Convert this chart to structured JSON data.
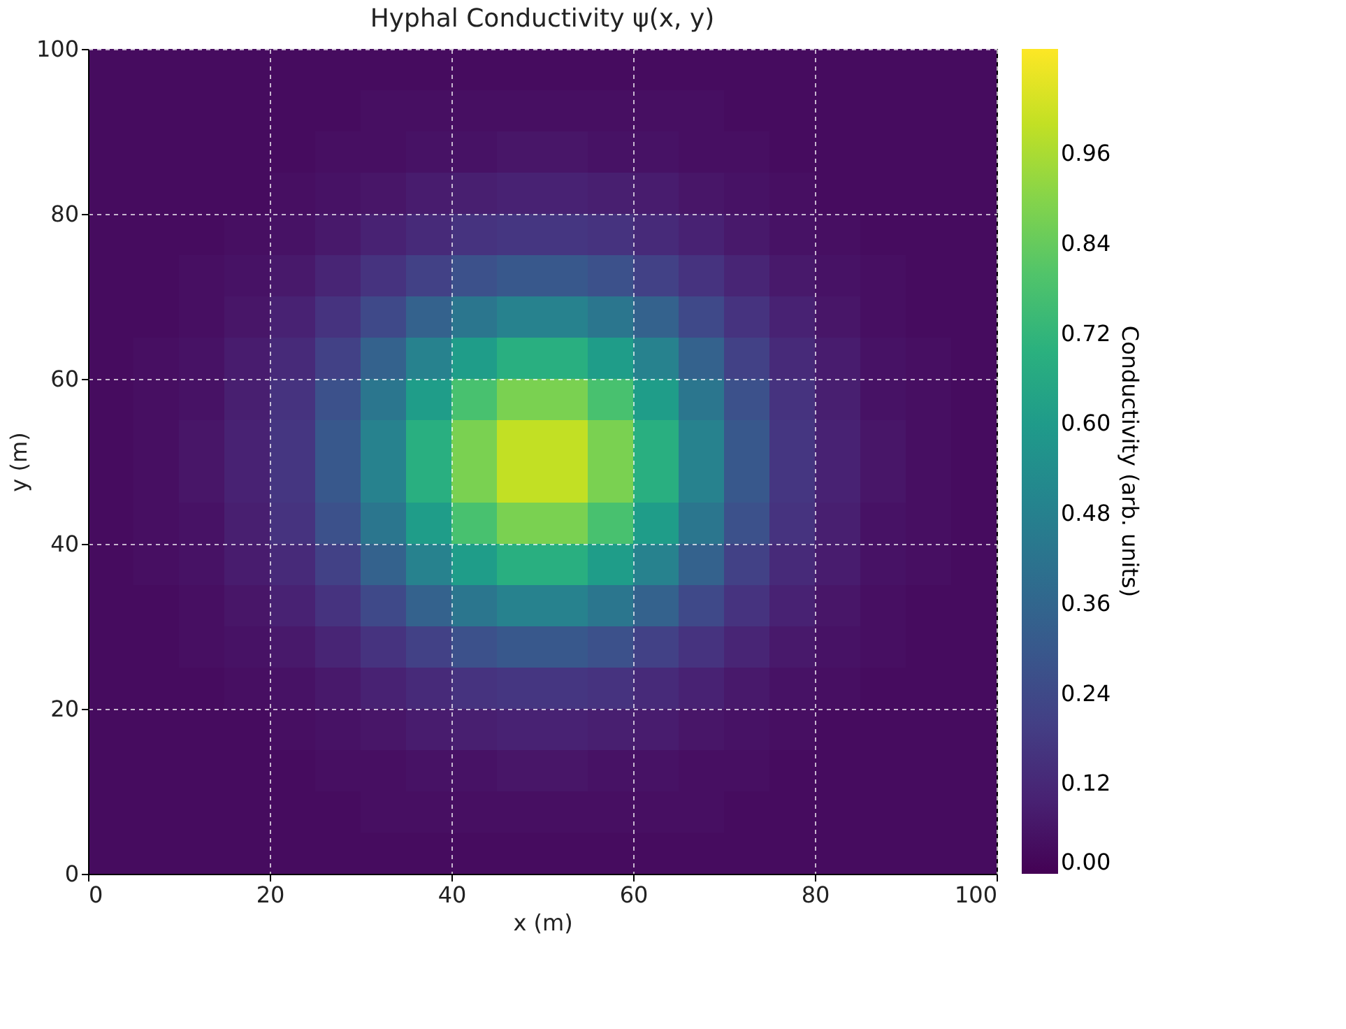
{
  "chart_data": {
    "type": "heatmap",
    "title": "Hyphal Conductivity ψ(x, y)",
    "xlabel": "x (m)",
    "ylabel": "y (m)",
    "clabel": "Conductivity (arb. units)",
    "cells": [
      [
        0.03,
        0.03,
        0.03,
        0.03,
        0.03,
        0.03,
        0.03,
        0.03,
        0.03,
        0.03,
        0.03,
        0.03,
        0.03,
        0.03,
        0.03,
        0.03,
        0.03,
        0.03,
        0.03,
        0.03
      ],
      [
        0.03,
        0.03,
        0.03,
        0.03,
        0.03,
        0.03,
        0.04,
        0.04,
        0.04,
        0.04,
        0.04,
        0.04,
        0.04,
        0.04,
        0.03,
        0.03,
        0.03,
        0.03,
        0.03,
        0.03
      ],
      [
        0.03,
        0.03,
        0.03,
        0.03,
        0.03,
        0.04,
        0.04,
        0.05,
        0.05,
        0.06,
        0.06,
        0.05,
        0.05,
        0.04,
        0.04,
        0.03,
        0.03,
        0.03,
        0.03,
        0.03
      ],
      [
        0.03,
        0.03,
        0.03,
        0.03,
        0.04,
        0.05,
        0.06,
        0.08,
        0.09,
        0.1,
        0.1,
        0.09,
        0.08,
        0.06,
        0.05,
        0.04,
        0.03,
        0.03,
        0.03,
        0.03
      ],
      [
        0.03,
        0.03,
        0.03,
        0.04,
        0.05,
        0.07,
        0.1,
        0.13,
        0.16,
        0.17,
        0.17,
        0.16,
        0.13,
        0.1,
        0.07,
        0.05,
        0.04,
        0.03,
        0.03,
        0.03
      ],
      [
        0.03,
        0.03,
        0.04,
        0.05,
        0.07,
        0.11,
        0.16,
        0.21,
        0.27,
        0.3,
        0.3,
        0.27,
        0.21,
        0.16,
        0.11,
        0.07,
        0.05,
        0.04,
        0.03,
        0.03
      ],
      [
        0.03,
        0.03,
        0.04,
        0.06,
        0.1,
        0.16,
        0.24,
        0.34,
        0.43,
        0.48,
        0.48,
        0.43,
        0.34,
        0.24,
        0.16,
        0.1,
        0.06,
        0.04,
        0.03,
        0.03
      ],
      [
        0.03,
        0.04,
        0.05,
        0.08,
        0.13,
        0.21,
        0.34,
        0.48,
        0.61,
        0.69,
        0.69,
        0.61,
        0.48,
        0.34,
        0.21,
        0.13,
        0.08,
        0.05,
        0.04,
        0.03
      ],
      [
        0.03,
        0.04,
        0.05,
        0.09,
        0.16,
        0.27,
        0.43,
        0.61,
        0.78,
        0.88,
        0.88,
        0.78,
        0.61,
        0.43,
        0.27,
        0.16,
        0.09,
        0.05,
        0.04,
        0.03
      ],
      [
        0.03,
        0.04,
        0.06,
        0.1,
        0.17,
        0.3,
        0.48,
        0.69,
        0.88,
        1.0,
        1.0,
        0.88,
        0.69,
        0.48,
        0.3,
        0.17,
        0.1,
        0.06,
        0.04,
        0.03
      ],
      [
        0.03,
        0.04,
        0.06,
        0.1,
        0.17,
        0.3,
        0.48,
        0.69,
        0.88,
        1.0,
        1.0,
        0.88,
        0.69,
        0.48,
        0.3,
        0.17,
        0.1,
        0.06,
        0.04,
        0.03
      ],
      [
        0.03,
        0.04,
        0.05,
        0.09,
        0.16,
        0.27,
        0.43,
        0.61,
        0.78,
        0.88,
        0.88,
        0.78,
        0.61,
        0.43,
        0.27,
        0.16,
        0.09,
        0.05,
        0.04,
        0.03
      ],
      [
        0.03,
        0.04,
        0.05,
        0.08,
        0.13,
        0.21,
        0.34,
        0.48,
        0.61,
        0.69,
        0.69,
        0.61,
        0.48,
        0.34,
        0.21,
        0.13,
        0.08,
        0.05,
        0.04,
        0.03
      ],
      [
        0.03,
        0.03,
        0.04,
        0.06,
        0.1,
        0.16,
        0.24,
        0.34,
        0.43,
        0.48,
        0.48,
        0.43,
        0.34,
        0.24,
        0.16,
        0.1,
        0.06,
        0.04,
        0.03,
        0.03
      ],
      [
        0.03,
        0.03,
        0.04,
        0.05,
        0.07,
        0.11,
        0.16,
        0.21,
        0.27,
        0.3,
        0.3,
        0.27,
        0.21,
        0.16,
        0.11,
        0.07,
        0.05,
        0.04,
        0.03,
        0.03
      ],
      [
        0.03,
        0.03,
        0.03,
        0.04,
        0.05,
        0.07,
        0.1,
        0.13,
        0.16,
        0.17,
        0.17,
        0.16,
        0.13,
        0.1,
        0.07,
        0.05,
        0.04,
        0.03,
        0.03,
        0.03
      ],
      [
        0.03,
        0.03,
        0.03,
        0.03,
        0.04,
        0.05,
        0.06,
        0.08,
        0.09,
        0.1,
        0.1,
        0.09,
        0.08,
        0.06,
        0.05,
        0.04,
        0.03,
        0.03,
        0.03,
        0.03
      ],
      [
        0.03,
        0.03,
        0.03,
        0.03,
        0.03,
        0.04,
        0.04,
        0.05,
        0.05,
        0.06,
        0.06,
        0.05,
        0.05,
        0.04,
        0.04,
        0.03,
        0.03,
        0.03,
        0.03,
        0.03
      ],
      [
        0.03,
        0.03,
        0.03,
        0.03,
        0.03,
        0.03,
        0.04,
        0.04,
        0.04,
        0.04,
        0.04,
        0.04,
        0.04,
        0.04,
        0.03,
        0.03,
        0.03,
        0.03,
        0.03,
        0.03
      ],
      [
        0.03,
        0.03,
        0.03,
        0.03,
        0.03,
        0.03,
        0.03,
        0.03,
        0.03,
        0.03,
        0.03,
        0.03,
        0.03,
        0.03,
        0.03,
        0.03,
        0.03,
        0.03,
        0.03,
        0.03
      ]
    ],
    "xlim": [
      0,
      100
    ],
    "xticks": [
      0,
      20,
      40,
      60,
      80,
      100
    ],
    "ylim": [
      0,
      100
    ],
    "yticks": [
      0,
      20,
      40,
      60,
      80,
      100
    ],
    "clim": [
      0,
      1.1
    ],
    "cticks": [
      {
        "value": 0,
        "label": "0.00"
      },
      0.12,
      0.24,
      0.36,
      0.48,
      {
        "value": 0.6,
        "label": "0.60"
      },
      0.72,
      0.84,
      0.96
    ],
    "grid": true
  }
}
